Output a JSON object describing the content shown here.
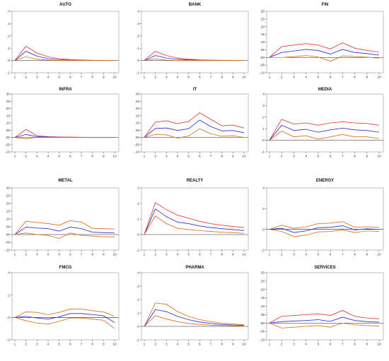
{
  "colors": {
    "mean": "#2b2bd6",
    "band_red": "#e8383d",
    "band_orange": "#d9701e",
    "axis": "#333333",
    "frame": "#999999",
    "zero": "#222222"
  },
  "chart_data": [
    {
      "type": "line",
      "title": "AUTO",
      "x": [
        1,
        2,
        3,
        4,
        5,
        6,
        7,
        8,
        9,
        10
      ],
      "ylim": [
        -0.1,
        0.4
      ],
      "yticks": [
        ".4",
        ".3",
        ".2",
        ".1",
        ".0",
        "-.1"
      ],
      "ytick_values": [
        0.4,
        0.3,
        0.2,
        0.1,
        0.0,
        -0.1
      ],
      "upper_color": "red",
      "series": [
        {
          "values": [
            0.0,
            0.115,
            0.06,
            0.03,
            0.015,
            0.007,
            0.004,
            0.002,
            0.001,
            0.001
          ]
        },
        {
          "values": [
            0.0,
            0.075,
            0.035,
            0.015,
            0.007,
            0.003,
            0.002,
            0.001,
            0.0,
            0.0
          ]
        },
        {
          "values": [
            0.0,
            0.03,
            0.01,
            0.003,
            0.0,
            0.0,
            0.0,
            0.0,
            0.0,
            0.0
          ]
        }
      ]
    },
    {
      "type": "line",
      "title": "BANK",
      "x": [
        1,
        2,
        3,
        4,
        5,
        6,
        7,
        8,
        9,
        10
      ],
      "ylim": [
        -0.1,
        0.4
      ],
      "yticks": [
        ".4",
        ".3",
        ".2",
        ".1",
        ".0",
        "-.1"
      ],
      "ytick_values": [
        0.4,
        0.3,
        0.2,
        0.1,
        0.0,
        -0.1
      ],
      "upper_color": "red",
      "series": [
        {
          "values": [
            0.0,
            0.075,
            0.04,
            0.02,
            0.01,
            0.005,
            0.003,
            0.002,
            0.001,
            0.001
          ]
        },
        {
          "values": [
            0.0,
            0.04,
            0.02,
            0.01,
            0.005,
            0.002,
            0.001,
            0.0,
            0.0,
            0.0
          ]
        },
        {
          "values": [
            0.0,
            0.012,
            0.003,
            0.0,
            0.0,
            0.0,
            0.0,
            0.0,
            0.0,
            0.0
          ]
        }
      ]
    },
    {
      "type": "line",
      "title": "FIN",
      "x": [
        1,
        2,
        3,
        4,
        5,
        6,
        7,
        8,
        9,
        10
      ],
      "ylim": [
        -0.1,
        0.3
      ],
      "yticks": [
        ".30",
        ".25",
        ".20",
        ".15",
        ".10",
        ".05",
        ".00",
        "-.05",
        "-.10"
      ],
      "ytick_values": [
        0.3,
        0.25,
        0.2,
        0.15,
        0.1,
        0.05,
        0.0,
        -0.05,
        -0.1
      ],
      "upper_color": "red",
      "series": [
        {
          "values": [
            0.0,
            0.07,
            0.08,
            0.09,
            0.08,
            0.055,
            0.095,
            0.06,
            0.045,
            0.035
          ]
        },
        {
          "values": [
            0.0,
            0.032,
            0.042,
            0.052,
            0.045,
            0.022,
            0.052,
            0.032,
            0.025,
            0.015
          ]
        },
        {
          "values": [
            0.0,
            0.0,
            0.005,
            0.012,
            0.003,
            -0.025,
            0.01,
            0.005,
            0.002,
            -0.005
          ]
        }
      ]
    },
    {
      "type": "line",
      "title": "INFRA",
      "x": [
        1,
        2,
        3,
        4,
        5,
        6,
        7,
        8,
        9,
        10
      ],
      "ylim": [
        -0.1,
        0.3
      ],
      "yticks": [
        ".30",
        ".25",
        ".20",
        ".15",
        ".10",
        ".05",
        ".00",
        "-.05",
        "-.10"
      ],
      "ytick_values": [
        0.3,
        0.25,
        0.2,
        0.15,
        0.1,
        0.05,
        0.0,
        -0.05,
        -0.1
      ],
      "upper_color": "red",
      "series": [
        {
          "values": [
            0.0,
            0.055,
            0.012,
            0.005,
            0.003,
            0.002,
            0.001,
            0.0,
            0.0,
            0.0
          ]
        },
        {
          "values": [
            0.0,
            0.02,
            0.005,
            0.002,
            0.001,
            0.0,
            0.0,
            0.0,
            0.0,
            0.0
          ]
        },
        {
          "values": [
            0.0,
            -0.01,
            0.0,
            0.0,
            0.0,
            0.0,
            0.0,
            0.0,
            0.0,
            0.0
          ]
        }
      ]
    },
    {
      "type": "line",
      "title": "IT",
      "x": [
        1,
        2,
        3,
        4,
        5,
        6,
        7,
        8,
        9,
        10
      ],
      "ylim": [
        -0.1,
        0.3
      ],
      "yticks": [
        ".30",
        ".25",
        ".20",
        ".15",
        ".10",
        ".05",
        ".00",
        "-.05",
        "-.10"
      ],
      "ytick_values": [
        0.3,
        0.25,
        0.2,
        0.15,
        0.1,
        0.05,
        0.0,
        -0.05,
        -0.1
      ],
      "upper_color": "red",
      "series": [
        {
          "values": [
            0.0,
            0.105,
            0.115,
            0.095,
            0.11,
            0.17,
            0.125,
            0.08,
            0.085,
            0.065
          ]
        },
        {
          "values": [
            0.0,
            0.062,
            0.065,
            0.048,
            0.06,
            0.12,
            0.075,
            0.045,
            0.048,
            0.032
          ]
        },
        {
          "values": [
            0.0,
            0.02,
            0.018,
            -0.005,
            0.01,
            0.06,
            0.025,
            0.008,
            0.012,
            0.0
          ]
        }
      ]
    },
    {
      "type": "line",
      "title": "MEDIA",
      "x": [
        1,
        2,
        3,
        4,
        5,
        6,
        7,
        8,
        9,
        10
      ],
      "ylim": [
        -0.1,
        0.4
      ],
      "yticks": [
        ".4",
        ".3",
        ".2",
        ".1",
        ".0",
        "-.1"
      ],
      "ytick_values": [
        0.4,
        0.3,
        0.2,
        0.1,
        0.0,
        -0.1
      ],
      "upper_color": "red",
      "series": [
        {
          "values": [
            0.0,
            0.18,
            0.14,
            0.15,
            0.13,
            0.15,
            0.16,
            0.15,
            0.145,
            0.13
          ]
        },
        {
          "values": [
            0.0,
            0.13,
            0.085,
            0.095,
            0.07,
            0.09,
            0.105,
            0.09,
            0.085,
            0.07
          ]
        },
        {
          "values": [
            0.0,
            0.08,
            0.03,
            0.04,
            0.01,
            0.03,
            0.05,
            0.03,
            0.03,
            0.015
          ]
        }
      ]
    },
    {
      "type": "line",
      "title": "METAL",
      "x": [
        1,
        2,
        3,
        4,
        5,
        6,
        7,
        8,
        9,
        10
      ],
      "ylim": [
        -0.1,
        0.3
      ],
      "yticks": [
        ".30",
        ".25",
        ".20",
        ".15",
        ".10",
        ".05",
        ".00",
        "-.05",
        "-.10"
      ],
      "ytick_values": [
        0.3,
        0.25,
        0.2,
        0.15,
        0.1,
        0.05,
        0.0,
        -0.05,
        -0.1
      ],
      "upper_color": "orange",
      "series": [
        {
          "values": [
            0.0,
            0.085,
            0.078,
            0.07,
            0.06,
            0.09,
            0.08,
            0.04,
            0.038,
            0.035
          ]
        },
        {
          "values": [
            0.0,
            0.048,
            0.042,
            0.038,
            0.022,
            0.048,
            0.038,
            0.015,
            0.012,
            0.01
          ]
        },
        {
          "values": [
            0.0,
            0.01,
            0.0,
            -0.005,
            -0.025,
            0.01,
            -0.005,
            -0.01,
            -0.015,
            -0.015
          ]
        }
      ]
    },
    {
      "type": "line",
      "title": "REALTY",
      "x": [
        1,
        2,
        3,
        4,
        5,
        6,
        7,
        8,
        9,
        10
      ],
      "ylim": [
        -0.1,
        0.3
      ],
      "yticks": [
        ".3",
        ".2",
        ".1",
        ".0",
        "-.1"
      ],
      "ytick_values": [
        0.3,
        0.2,
        0.1,
        0.0,
        -0.1
      ],
      "upper_color": "red",
      "series": [
        {
          "values": [
            0.0,
            0.205,
            0.16,
            0.125,
            0.105,
            0.085,
            0.07,
            0.06,
            0.052,
            0.045
          ]
        },
        {
          "values": [
            0.0,
            0.165,
            0.115,
            0.08,
            0.07,
            0.055,
            0.045,
            0.038,
            0.032,
            0.026
          ]
        },
        {
          "values": [
            0.0,
            0.12,
            0.07,
            0.04,
            0.032,
            0.025,
            0.02,
            0.015,
            0.012,
            0.008
          ]
        }
      ]
    },
    {
      "type": "line",
      "title": "ENERGY",
      "x": [
        1,
        2,
        3,
        4,
        5,
        6,
        7,
        8,
        9,
        10
      ],
      "ylim": [
        -0.2,
        0.4
      ],
      "yticks": [
        ".4",
        ".2",
        ".0",
        "-.2"
      ],
      "ytick_values": [
        0.4,
        0.2,
        0.0,
        -0.2
      ],
      "upper_color": "orange",
      "series": [
        {
          "values": [
            0.0,
            0.04,
            0.01,
            0.025,
            0.055,
            0.06,
            0.075,
            0.02,
            0.025,
            0.02
          ]
        },
        {
          "values": [
            0.0,
            0.01,
            -0.03,
            -0.015,
            0.015,
            0.02,
            0.035,
            -0.005,
            0.005,
            0.0
          ]
        },
        {
          "values": [
            0.0,
            -0.02,
            -0.07,
            -0.055,
            -0.025,
            -0.02,
            -0.005,
            -0.03,
            -0.015,
            -0.02
          ]
        }
      ]
    },
    {
      "type": "line",
      "title": "FMCG",
      "x": [
        1,
        2,
        3,
        4,
        5,
        6,
        7,
        8,
        9,
        10
      ],
      "ylim": [
        -0.2,
        0.4
      ],
      "yticks": [
        ".4",
        ".2",
        ".0",
        "-.2"
      ],
      "ytick_values": [
        0.4,
        0.2,
        0.0,
        -0.2
      ],
      "upper_color": "orange",
      "series": [
        {
          "values": [
            0.0,
            0.05,
            0.045,
            0.025,
            0.045,
            0.075,
            0.075,
            0.06,
            0.05,
            0.01
          ]
        },
        {
          "values": [
            0.0,
            0.01,
            -0.005,
            -0.015,
            0.005,
            0.035,
            0.035,
            0.025,
            0.015,
            -0.045
          ]
        },
        {
          "values": [
            0.0,
            -0.03,
            -0.05,
            -0.06,
            -0.035,
            -0.005,
            -0.005,
            -0.015,
            -0.025,
            -0.1
          ]
        }
      ]
    },
    {
      "type": "line",
      "title": "PHARMA",
      "x": [
        1,
        2,
        3,
        4,
        5,
        6,
        7,
        8,
        9,
        10
      ],
      "ylim": [
        -0.1,
        0.4
      ],
      "yticks": [
        ".4",
        ".3",
        ".2",
        ".1",
        ".0",
        "-.1"
      ],
      "ytick_values": [
        0.4,
        0.3,
        0.2,
        0.1,
        0.0,
        -0.1
      ],
      "upper_color": "orange",
      "series": [
        {
          "values": [
            0.0,
            0.175,
            0.165,
            0.11,
            0.075,
            0.05,
            0.035,
            0.025,
            0.018,
            0.012
          ]
        },
        {
          "values": [
            0.0,
            0.125,
            0.11,
            0.075,
            0.05,
            0.032,
            0.022,
            0.015,
            0.01,
            0.007
          ]
        },
        {
          "values": [
            0.0,
            0.08,
            0.055,
            0.035,
            0.022,
            0.014,
            0.009,
            0.006,
            0.004,
            0.002
          ]
        }
      ]
    },
    {
      "type": "line",
      "title": "SERVICES",
      "x": [
        1,
        2,
        3,
        4,
        5,
        6,
        7,
        8,
        9,
        10
      ],
      "ylim": [
        -0.1,
        0.3
      ],
      "yticks": [
        ".30",
        ".25",
        ".20",
        ".15",
        ".10",
        ".05",
        ".00",
        "-.05",
        "-.10"
      ],
      "ytick_values": [
        0.3,
        0.25,
        0.2,
        0.15,
        0.1,
        0.05,
        0.0,
        -0.05,
        -0.1
      ],
      "upper_color": "red",
      "series": [
        {
          "values": [
            0.0,
            0.04,
            0.045,
            0.05,
            0.055,
            0.045,
            0.075,
            0.04,
            0.03,
            0.025
          ]
        },
        {
          "values": [
            0.0,
            0.008,
            0.012,
            0.015,
            0.02,
            0.01,
            0.035,
            0.015,
            0.008,
            0.005
          ]
        },
        {
          "values": [
            0.0,
            -0.03,
            -0.025,
            -0.02,
            -0.015,
            -0.025,
            0.0,
            -0.01,
            -0.015,
            -0.018
          ]
        }
      ]
    }
  ]
}
